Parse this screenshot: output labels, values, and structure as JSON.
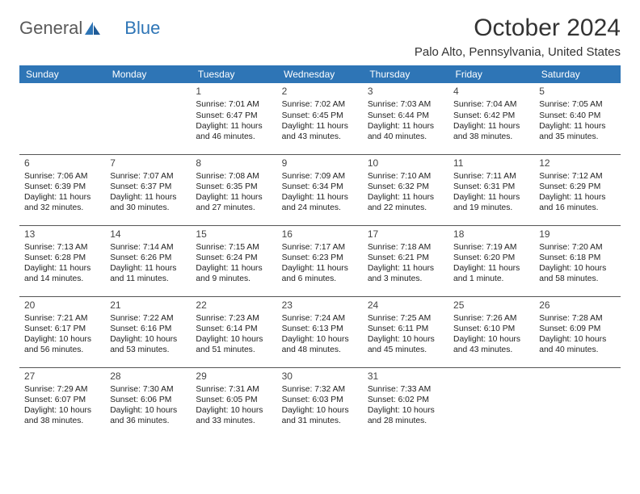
{
  "brand": {
    "part1": "General",
    "part2": "Blue"
  },
  "title": "October 2024",
  "location": "Palo Alto, Pennsylvania, United States",
  "colors": {
    "header_bg": "#2e75b6",
    "header_text": "#ffffff",
    "text": "#222222",
    "rule": "#555555"
  },
  "weekdays": [
    "Sunday",
    "Monday",
    "Tuesday",
    "Wednesday",
    "Thursday",
    "Friday",
    "Saturday"
  ],
  "weeks": [
    [
      null,
      null,
      {
        "day": "1",
        "sunrise": "Sunrise: 7:01 AM",
        "sunset": "Sunset: 6:47 PM",
        "daylight1": "Daylight: 11 hours",
        "daylight2": "and 46 minutes."
      },
      {
        "day": "2",
        "sunrise": "Sunrise: 7:02 AM",
        "sunset": "Sunset: 6:45 PM",
        "daylight1": "Daylight: 11 hours",
        "daylight2": "and 43 minutes."
      },
      {
        "day": "3",
        "sunrise": "Sunrise: 7:03 AM",
        "sunset": "Sunset: 6:44 PM",
        "daylight1": "Daylight: 11 hours",
        "daylight2": "and 40 minutes."
      },
      {
        "day": "4",
        "sunrise": "Sunrise: 7:04 AM",
        "sunset": "Sunset: 6:42 PM",
        "daylight1": "Daylight: 11 hours",
        "daylight2": "and 38 minutes."
      },
      {
        "day": "5",
        "sunrise": "Sunrise: 7:05 AM",
        "sunset": "Sunset: 6:40 PM",
        "daylight1": "Daylight: 11 hours",
        "daylight2": "and 35 minutes."
      }
    ],
    [
      {
        "day": "6",
        "sunrise": "Sunrise: 7:06 AM",
        "sunset": "Sunset: 6:39 PM",
        "daylight1": "Daylight: 11 hours",
        "daylight2": "and 32 minutes."
      },
      {
        "day": "7",
        "sunrise": "Sunrise: 7:07 AM",
        "sunset": "Sunset: 6:37 PM",
        "daylight1": "Daylight: 11 hours",
        "daylight2": "and 30 minutes."
      },
      {
        "day": "8",
        "sunrise": "Sunrise: 7:08 AM",
        "sunset": "Sunset: 6:35 PM",
        "daylight1": "Daylight: 11 hours",
        "daylight2": "and 27 minutes."
      },
      {
        "day": "9",
        "sunrise": "Sunrise: 7:09 AM",
        "sunset": "Sunset: 6:34 PM",
        "daylight1": "Daylight: 11 hours",
        "daylight2": "and 24 minutes."
      },
      {
        "day": "10",
        "sunrise": "Sunrise: 7:10 AM",
        "sunset": "Sunset: 6:32 PM",
        "daylight1": "Daylight: 11 hours",
        "daylight2": "and 22 minutes."
      },
      {
        "day": "11",
        "sunrise": "Sunrise: 7:11 AM",
        "sunset": "Sunset: 6:31 PM",
        "daylight1": "Daylight: 11 hours",
        "daylight2": "and 19 minutes."
      },
      {
        "day": "12",
        "sunrise": "Sunrise: 7:12 AM",
        "sunset": "Sunset: 6:29 PM",
        "daylight1": "Daylight: 11 hours",
        "daylight2": "and 16 minutes."
      }
    ],
    [
      {
        "day": "13",
        "sunrise": "Sunrise: 7:13 AM",
        "sunset": "Sunset: 6:28 PM",
        "daylight1": "Daylight: 11 hours",
        "daylight2": "and 14 minutes."
      },
      {
        "day": "14",
        "sunrise": "Sunrise: 7:14 AM",
        "sunset": "Sunset: 6:26 PM",
        "daylight1": "Daylight: 11 hours",
        "daylight2": "and 11 minutes."
      },
      {
        "day": "15",
        "sunrise": "Sunrise: 7:15 AM",
        "sunset": "Sunset: 6:24 PM",
        "daylight1": "Daylight: 11 hours",
        "daylight2": "and 9 minutes."
      },
      {
        "day": "16",
        "sunrise": "Sunrise: 7:17 AM",
        "sunset": "Sunset: 6:23 PM",
        "daylight1": "Daylight: 11 hours",
        "daylight2": "and 6 minutes."
      },
      {
        "day": "17",
        "sunrise": "Sunrise: 7:18 AM",
        "sunset": "Sunset: 6:21 PM",
        "daylight1": "Daylight: 11 hours",
        "daylight2": "and 3 minutes."
      },
      {
        "day": "18",
        "sunrise": "Sunrise: 7:19 AM",
        "sunset": "Sunset: 6:20 PM",
        "daylight1": "Daylight: 11 hours",
        "daylight2": "and 1 minute."
      },
      {
        "day": "19",
        "sunrise": "Sunrise: 7:20 AM",
        "sunset": "Sunset: 6:18 PM",
        "daylight1": "Daylight: 10 hours",
        "daylight2": "and 58 minutes."
      }
    ],
    [
      {
        "day": "20",
        "sunrise": "Sunrise: 7:21 AM",
        "sunset": "Sunset: 6:17 PM",
        "daylight1": "Daylight: 10 hours",
        "daylight2": "and 56 minutes."
      },
      {
        "day": "21",
        "sunrise": "Sunrise: 7:22 AM",
        "sunset": "Sunset: 6:16 PM",
        "daylight1": "Daylight: 10 hours",
        "daylight2": "and 53 minutes."
      },
      {
        "day": "22",
        "sunrise": "Sunrise: 7:23 AM",
        "sunset": "Sunset: 6:14 PM",
        "daylight1": "Daylight: 10 hours",
        "daylight2": "and 51 minutes."
      },
      {
        "day": "23",
        "sunrise": "Sunrise: 7:24 AM",
        "sunset": "Sunset: 6:13 PM",
        "daylight1": "Daylight: 10 hours",
        "daylight2": "and 48 minutes."
      },
      {
        "day": "24",
        "sunrise": "Sunrise: 7:25 AM",
        "sunset": "Sunset: 6:11 PM",
        "daylight1": "Daylight: 10 hours",
        "daylight2": "and 45 minutes."
      },
      {
        "day": "25",
        "sunrise": "Sunrise: 7:26 AM",
        "sunset": "Sunset: 6:10 PM",
        "daylight1": "Daylight: 10 hours",
        "daylight2": "and 43 minutes."
      },
      {
        "day": "26",
        "sunrise": "Sunrise: 7:28 AM",
        "sunset": "Sunset: 6:09 PM",
        "daylight1": "Daylight: 10 hours",
        "daylight2": "and 40 minutes."
      }
    ],
    [
      {
        "day": "27",
        "sunrise": "Sunrise: 7:29 AM",
        "sunset": "Sunset: 6:07 PM",
        "daylight1": "Daylight: 10 hours",
        "daylight2": "and 38 minutes."
      },
      {
        "day": "28",
        "sunrise": "Sunrise: 7:30 AM",
        "sunset": "Sunset: 6:06 PM",
        "daylight1": "Daylight: 10 hours",
        "daylight2": "and 36 minutes."
      },
      {
        "day": "29",
        "sunrise": "Sunrise: 7:31 AM",
        "sunset": "Sunset: 6:05 PM",
        "daylight1": "Daylight: 10 hours",
        "daylight2": "and 33 minutes."
      },
      {
        "day": "30",
        "sunrise": "Sunrise: 7:32 AM",
        "sunset": "Sunset: 6:03 PM",
        "daylight1": "Daylight: 10 hours",
        "daylight2": "and 31 minutes."
      },
      {
        "day": "31",
        "sunrise": "Sunrise: 7:33 AM",
        "sunset": "Sunset: 6:02 PM",
        "daylight1": "Daylight: 10 hours",
        "daylight2": "and 28 minutes."
      },
      null,
      null
    ]
  ]
}
